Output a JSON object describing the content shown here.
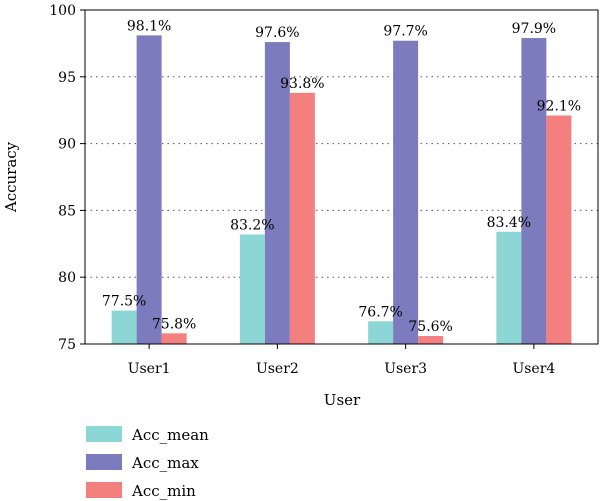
{
  "chart_data": {
    "type": "bar",
    "title": "",
    "xlabel": "User",
    "ylabel": "Accuracy",
    "ylim": [
      75,
      100
    ],
    "yticks": [
      75,
      80,
      85,
      90,
      95,
      100
    ],
    "grid": true,
    "legend_position": "bottom-left",
    "categories": [
      "User1",
      "User2",
      "User3",
      "User4"
    ],
    "series": [
      {
        "name": "Acc_mean",
        "color": "#8dd6d6",
        "values": [
          77.5,
          83.2,
          76.7,
          83.4
        ],
        "labels": [
          "77.5%",
          "83.2%",
          "76.7%",
          "83.4%"
        ]
      },
      {
        "name": "Acc_max",
        "color": "#7b7bbd",
        "values": [
          98.1,
          97.6,
          97.7,
          97.9
        ],
        "labels": [
          "98.1%",
          "97.6%",
          "97.7%",
          "97.9%"
        ]
      },
      {
        "name": "Acc_min",
        "color": "#f47f7f",
        "values": [
          75.8,
          93.8,
          75.6,
          92.1
        ],
        "labels": [
          "75.8%",
          "93.8%",
          "75.6%",
          "92.1%"
        ]
      }
    ]
  }
}
